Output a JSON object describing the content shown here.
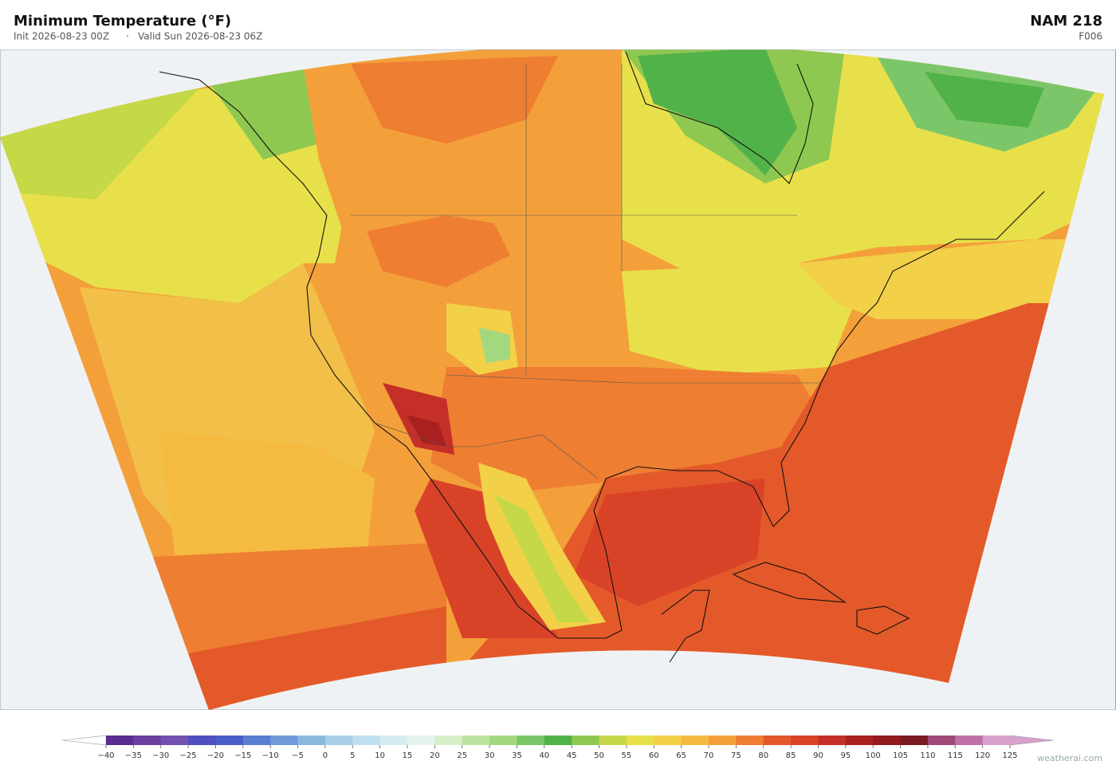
{
  "header": {
    "title": "Minimum Temperature  (°F)",
    "init": "Init 2026-08-23 00Z",
    "separator": "·",
    "valid": "Valid Sun 2026-08-23 06Z",
    "model": "NAM  218",
    "forecast_hour": "F006"
  },
  "colorbar": {
    "ticks": [
      {
        "value": -40,
        "label": "−40"
      },
      {
        "value": -35,
        "label": "−35"
      },
      {
        "value": -30,
        "label": "−30"
      },
      {
        "value": -25,
        "label": "−25"
      },
      {
        "value": -20,
        "label": "−20"
      },
      {
        "value": -15,
        "label": "−15"
      },
      {
        "value": -10,
        "label": "−10"
      },
      {
        "value": -5,
        "label": "−5"
      },
      0,
      5,
      10,
      15,
      20,
      25,
      30,
      35,
      40,
      45,
      50,
      55,
      60,
      65,
      70,
      75,
      80,
      85,
      90,
      95,
      100,
      105,
      110,
      115,
      120,
      125
    ],
    "colors": [
      "#5b2c8f",
      "#6b3fa0",
      "#7450b0",
      "#4f4fc0",
      "#4a5fc8",
      "#5a7fd0",
      "#6f9ad8",
      "#8cb8e0",
      "#a8cfe8",
      "#c0dff0",
      "#d5ecf2",
      "#e5f4ec",
      "#d6eec8",
      "#bde3a0",
      "#a3d880",
      "#7cc66a",
      "#52b24a",
      "#8ec850",
      "#c5d848",
      "#e8e04a",
      "#f2d048",
      "#f5bb40",
      "#f4a03a",
      "#ee7e32",
      "#e4592a",
      "#d84328",
      "#c43028",
      "#a82020",
      "#921a1f",
      "#7a1a22",
      "#a04a7a",
      "#c070a8",
      "#d8a0cc"
    ],
    "under_color": "#ffffff",
    "over_color": "#d8a0cc"
  },
  "footer": {
    "watermark": "weatherai.com"
  }
}
